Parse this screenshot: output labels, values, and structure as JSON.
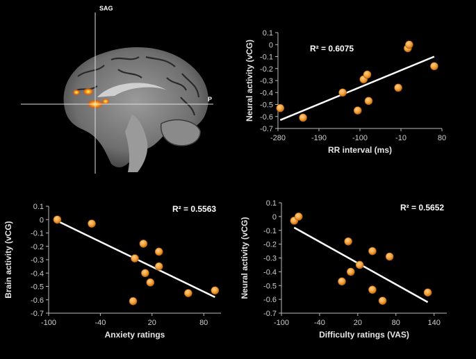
{
  "brain": {
    "view_label": "SAG",
    "axis_label": "P"
  },
  "chart_data": [
    {
      "type": "scatter",
      "title": "",
      "xlabel": "RR interval (ms)",
      "ylabel": "Neural activity (vCG)",
      "xlim": [
        -280,
        80
      ],
      "ylim": [
        -0.7,
        0.1
      ],
      "xticks": [
        -280,
        -190,
        -100,
        -10,
        80
      ],
      "yticks": [
        0.1,
        0,
        -0.1,
        -0.2,
        -0.3,
        -0.4,
        -0.5,
        -0.6,
        -0.7
      ],
      "annotation": "R² = 0.6075",
      "points": [
        {
          "x": -275,
          "y": -0.53
        },
        {
          "x": -225,
          "y": -0.61
        },
        {
          "x": -138,
          "y": -0.4
        },
        {
          "x": -105,
          "y": -0.55
        },
        {
          "x": -92,
          "y": -0.29
        },
        {
          "x": -84,
          "y": -0.25
        },
        {
          "x": -81,
          "y": -0.47
        },
        {
          "x": -16,
          "y": -0.36
        },
        {
          "x": 5,
          "y": -0.03
        },
        {
          "x": 8,
          "y": 0.0
        },
        {
          "x": 63,
          "y": -0.18
        }
      ],
      "trend": {
        "x": [
          -275,
          63
        ],
        "y": [
          -0.63,
          -0.1
        ]
      }
    },
    {
      "type": "scatter",
      "title": "",
      "xlabel": "Anxiety ratings",
      "ylabel": "Brain activity (vCG)",
      "xlim": [
        -100,
        100
      ],
      "ylim": [
        -0.7,
        0.1
      ],
      "xticks": [
        -100,
        -40,
        20,
        80
      ],
      "yticks": [
        0.1,
        0,
        -0.1,
        -0.2,
        -0.3,
        -0.4,
        -0.5,
        -0.6,
        -0.7
      ],
      "annotation": "R² = 0.5563",
      "points": [
        {
          "x": -90,
          "y": 0.0
        },
        {
          "x": -50,
          "y": -0.03
        },
        {
          "x": 10,
          "y": -0.18
        },
        {
          "x": 0,
          "y": -0.29
        },
        {
          "x": 28,
          "y": -0.24
        },
        {
          "x": 28,
          "y": -0.35
        },
        {
          "x": 12,
          "y": -0.4
        },
        {
          "x": 18,
          "y": -0.47
        },
        {
          "x": 62,
          "y": -0.55
        },
        {
          "x": -2,
          "y": -0.61
        },
        {
          "x": 93,
          "y": -0.53
        }
      ],
      "trend": {
        "x": [
          -90,
          93
        ],
        "y": [
          -0.01,
          -0.58
        ]
      }
    },
    {
      "type": "scatter",
      "title": "",
      "xlabel": "Difficulty ratings (VAS)",
      "ylabel": "Neural activity (vCG)",
      "xlim": [
        -100,
        160
      ],
      "ylim": [
        -0.7,
        0.1
      ],
      "xticks": [
        -100,
        -40,
        20,
        80,
        140
      ],
      "yticks": [
        0.1,
        0,
        -0.1,
        -0.2,
        -0.3,
        -0.4,
        -0.5,
        -0.6,
        -0.7
      ],
      "annotation": "R² = 0.5652",
      "points": [
        {
          "x": -80,
          "y": -0.03
        },
        {
          "x": -73,
          "y": 0.0
        },
        {
          "x": 5,
          "y": -0.18
        },
        {
          "x": 43,
          "y": -0.25
        },
        {
          "x": 70,
          "y": -0.29
        },
        {
          "x": 23,
          "y": -0.35
        },
        {
          "x": 9,
          "y": -0.4
        },
        {
          "x": -5,
          "y": -0.47
        },
        {
          "x": 43,
          "y": -0.53
        },
        {
          "x": 59,
          "y": -0.61
        },
        {
          "x": 130,
          "y": -0.55
        }
      ],
      "trend": {
        "x": [
          -80,
          130
        ],
        "y": [
          -0.08,
          -0.62
        ]
      }
    }
  ]
}
